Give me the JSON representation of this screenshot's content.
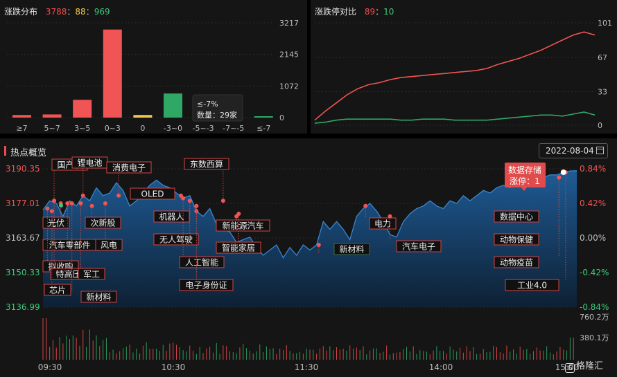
{
  "distribution": {
    "title": "涨跌分布",
    "up": "3788",
    "flat": "88",
    "down": "969",
    "sep": "：",
    "tooltip": {
      "line1": "≤-7%",
      "line2": "数量：29家"
    },
    "colors": {
      "up": "#f05454",
      "flat": "#f2c94c",
      "down": "#2fa866"
    },
    "chart_data": {
      "type": "bar",
      "categories": [
        "≥7",
        "5~7",
        "3~5",
        "0~3",
        "0",
        "-3~0",
        "-5~-3",
        "-7~-5",
        "≤-7"
      ],
      "values": [
        89,
        107,
        603,
        2989,
        88,
        818,
        88,
        34,
        29
      ],
      "groups": [
        "up",
        "up",
        "up",
        "up",
        "flat",
        "down",
        "down",
        "down",
        "down"
      ],
      "yticks": [
        "3217",
        "2145",
        "1072",
        "0"
      ],
      "ylim": [
        0,
        3217
      ]
    }
  },
  "ratio": {
    "title": "涨跌停对比",
    "up": "89",
    "down": "10",
    "chart_data": {
      "type": "line",
      "ylim": [
        0,
        101
      ],
      "yticks": [
        "101",
        "67",
        "33",
        "0"
      ],
      "series": [
        {
          "color": "#f05454",
          "values": [
            5,
            14,
            22,
            30,
            36,
            40,
            42,
            45,
            47,
            48,
            49,
            50,
            51,
            52,
            53,
            54,
            56,
            60,
            63,
            66,
            70,
            74,
            79,
            84,
            89,
            92,
            89
          ]
        },
        {
          "color": "#2fa866",
          "values": [
            2,
            3,
            5,
            6,
            6,
            6,
            6,
            6,
            5,
            5,
            6,
            6,
            6,
            5,
            5,
            5,
            5,
            6,
            7,
            8,
            9,
            10,
            10,
            9,
            11,
            13,
            10
          ]
        }
      ]
    }
  },
  "hot": {
    "title": "热点概览",
    "date": "2022-08-04",
    "logo": "格隆汇",
    "logo_mark": "G",
    "chart_data": {
      "type": "area",
      "yticks_left": [
        "3190.35",
        "3177.01",
        "3163.67",
        "3150.33",
        "3136.99"
      ],
      "yticks_right": [
        "0.84%",
        "0.42%",
        "0.00%",
        "-0.42%",
        "-0.84%"
      ],
      "ylim": [
        3136.99,
        3190.35
      ],
      "xticks": [
        "09:30",
        "10:30",
        "11:30",
        "14:00",
        "15:00"
      ],
      "volume_ticks": [
        "760.2万",
        "380.1万"
      ],
      "price_points": [
        [
          0,
          3174.5
        ],
        [
          3,
          3178
        ],
        [
          6,
          3177
        ],
        [
          9,
          3172
        ],
        [
          12,
          3178
        ],
        [
          15,
          3176
        ],
        [
          18,
          3180
        ],
        [
          21,
          3178
        ],
        [
          24,
          3183
        ],
        [
          27,
          3180
        ],
        [
          30,
          3181
        ],
        [
          33,
          3185
        ],
        [
          36,
          3182
        ],
        [
          39,
          3176
        ],
        [
          42,
          3178
        ],
        [
          45,
          3181
        ],
        [
          48,
          3184
        ],
        [
          51,
          3186
        ],
        [
          54,
          3184
        ],
        [
          57,
          3183
        ],
        [
          60,
          3181
        ],
        [
          63,
          3179
        ],
        [
          66,
          3180
        ],
        [
          69,
          3174
        ],
        [
          72,
          3172
        ],
        [
          75,
          3175
        ],
        [
          78,
          3169
        ],
        [
          81,
          3167
        ],
        [
          84,
          3166
        ],
        [
          87,
          3162
        ],
        [
          90,
          3163
        ],
        [
          93,
          3164
        ],
        [
          96,
          3160
        ],
        [
          99,
          3157
        ],
        [
          102,
          3159
        ],
        [
          105,
          3161
        ],
        [
          108,
          3156
        ],
        [
          111,
          3160
        ],
        [
          114,
          3157
        ],
        [
          117,
          3161
        ],
        [
          120,
          3159
        ],
        [
          123,
          3161
        ],
        [
          126,
          3170
        ],
        [
          129,
          3167
        ],
        [
          132,
          3170
        ],
        [
          135,
          3167
        ],
        [
          138,
          3163
        ],
        [
          141,
          3172
        ],
        [
          144,
          3175
        ],
        [
          147,
          3177
        ],
        [
          150,
          3174
        ],
        [
          153,
          3170
        ],
        [
          156,
          3165
        ],
        [
          159,
          3164
        ],
        [
          162,
          3170
        ],
        [
          165,
          3173
        ],
        [
          168,
          3175
        ],
        [
          171,
          3176
        ],
        [
          174,
          3178
        ],
        [
          177,
          3176
        ],
        [
          180,
          3175
        ],
        [
          183,
          3178
        ],
        [
          186,
          3177
        ],
        [
          189,
          3180
        ],
        [
          192,
          3178
        ],
        [
          195,
          3180
        ],
        [
          198,
          3182
        ],
        [
          201,
          3181
        ],
        [
          204,
          3183
        ],
        [
          207,
          3184
        ],
        [
          210,
          3183
        ],
        [
          213,
          3185
        ],
        [
          216,
          3184
        ],
        [
          219,
          3186
        ],
        [
          222,
          3188
        ],
        [
          225,
          3187
        ],
        [
          228,
          3188
        ],
        [
          231,
          3188
        ],
        [
          234,
          3189
        ],
        [
          237,
          3189.5
        ],
        [
          240,
          3189.6
        ]
      ],
      "annotations": [
        {
          "text": "国产软",
          "t": 5,
          "p": 3178,
          "lx": 75,
          "ly": 230
        },
        {
          "text": "锂电池",
          "t": 18,
          "p": 3180,
          "lx": 104,
          "ly": 227
        },
        {
          "text": "消费电子",
          "t": 34,
          "p": 3180,
          "lx": 154,
          "ly": 234
        },
        {
          "text": "OLED",
          "t": 62,
          "p": 3180,
          "lx": 188,
          "ly": 272
        },
        {
          "text": "东数西算",
          "t": 81,
          "p": 3178,
          "lx": 266,
          "ly": 229
        },
        {
          "text": "光伏",
          "t": 8,
          "p": 3177,
          "lx": 62,
          "ly": 314
        },
        {
          "text": "汽车零部件",
          "t": 11,
          "p": 3177,
          "lx": 62,
          "ly": 346
        },
        {
          "text": "拟收购",
          "t": 2,
          "p": 3175,
          "lx": 62,
          "ly": 377
        },
        {
          "text": "特高压",
          "t": 5,
          "p": 3178,
          "lx": 73,
          "ly": 388
        },
        {
          "text": "芯片",
          "t": 4,
          "p": 3174,
          "lx": 64,
          "ly": 411
        },
        {
          "text": "军工",
          "t": 17,
          "p": 3177,
          "lx": 113,
          "ly": 388
        },
        {
          "text": "新材料",
          "t": 13,
          "p": 3177,
          "lx": 117,
          "ly": 421
        },
        {
          "text": "次新股",
          "t": 22,
          "p": 3176,
          "lx": 123,
          "ly": 314
        },
        {
          "text": "风电",
          "t": 28,
          "p": 3177,
          "lx": 138,
          "ly": 346
        },
        {
          "text": "机器人",
          "t": 69,
          "p": 3174,
          "lx": 222,
          "ly": 305
        },
        {
          "text": "无人驾驶",
          "t": 66,
          "p": 3178,
          "lx": 222,
          "ly": 338
        },
        {
          "text": "人工智能",
          "t": 63,
          "p": 3179,
          "lx": 259,
          "ly": 371
        },
        {
          "text": "电子身份证",
          "t": 69,
          "p": 3176,
          "lx": 259,
          "ly": 404
        },
        {
          "text": "新能源汽车",
          "t": 87,
          "p": 3172,
          "lx": 312,
          "ly": 318
        },
        {
          "text": "智能家居",
          "t": 88,
          "p": 3173,
          "lx": 312,
          "ly": 350
        },
        {
          "text": "新材料",
          "t": 124,
          "p": 3161,
          "lx": 482,
          "ly": 352
        },
        {
          "text": "电力",
          "t": 145,
          "p": 3176,
          "lx": 533,
          "ly": 315
        },
        {
          "text": "汽车电子",
          "t": 156,
          "p": 3172,
          "lx": 572,
          "ly": 348
        },
        {
          "text": "数据中心",
          "t": 232,
          "p": 3187,
          "lx": 713,
          "ly": 305
        },
        {
          "text": "动物保健",
          "t": 232,
          "p": 3187,
          "lx": 713,
          "ly": 338
        },
        {
          "text": "动物疫苗",
          "t": 232,
          "p": 3187,
          "lx": 713,
          "ly": 371
        },
        {
          "text": "工业4.0",
          "t": 235,
          "p": 3189,
          "lx": 729,
          "ly": 404
        }
      ],
      "callout": {
        "line1": "数据存储",
        "line2": "涨停：1",
        "t": 234,
        "p": 3189
      }
    }
  }
}
